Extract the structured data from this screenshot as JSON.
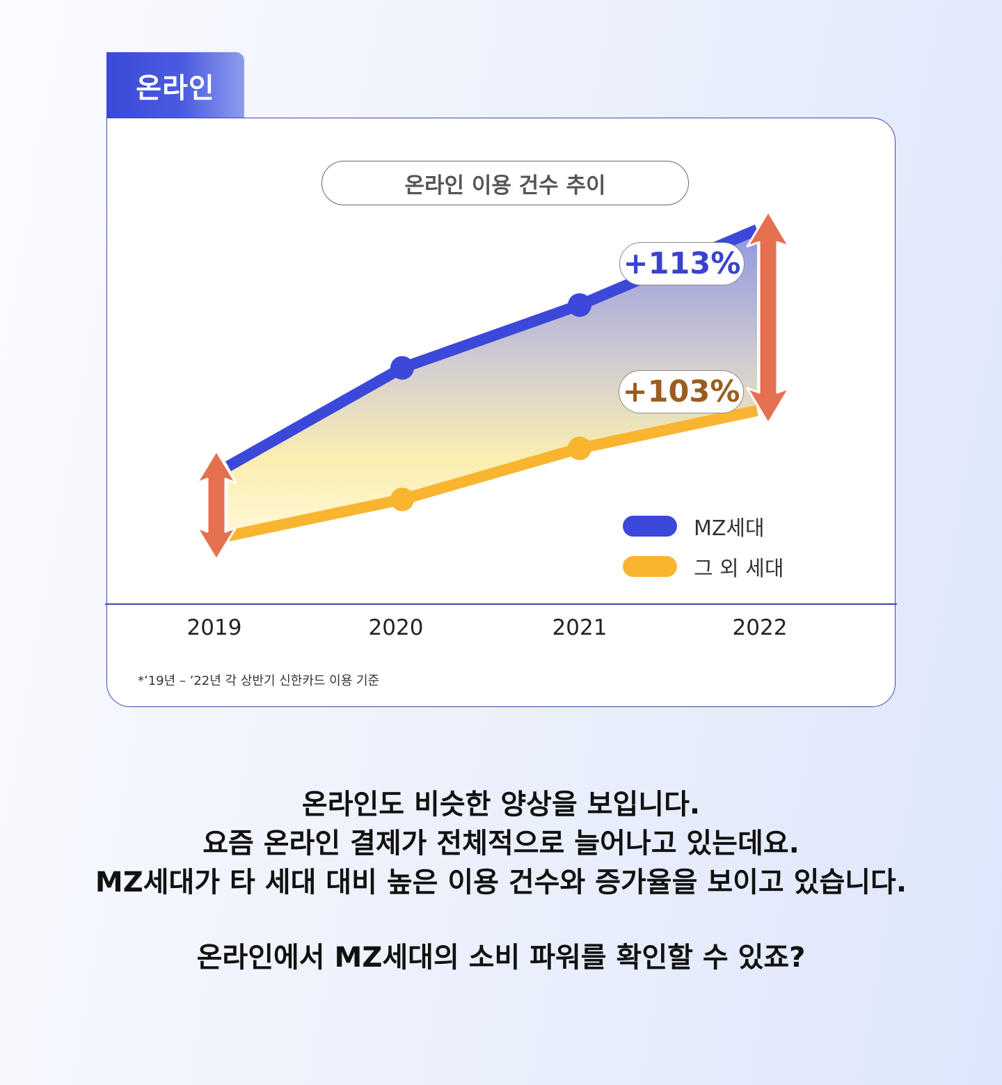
{
  "tab_label": "온라인",
  "chart_data": {
    "type": "line",
    "title": "온라인 이용 건수 추이",
    "categories": [
      "2019",
      "2020",
      "2021",
      "2022"
    ],
    "series": [
      {
        "name": "MZ세대",
        "values": [
          100,
          147,
          177,
          213
        ],
        "color": "#3c48d9"
      },
      {
        "name": "그 외 세대",
        "values": [
          100,
          130,
          172,
          203
        ],
        "color": "#f9b530"
      }
    ],
    "growth_labels": [
      {
        "series": "MZ세대",
        "text": "+113%",
        "color": "#3a42cf"
      },
      {
        "series": "그 외 세대",
        "text": "+103%",
        "color": "#9a5d1f"
      }
    ],
    "legend_position": "bottom-right",
    "xlabel": "",
    "ylabel": "",
    "grid": false,
    "arrow_color": "#e4704f",
    "footnote": "*’19년 – ’22년 각 상반기 신한카드 이용 기준"
  },
  "body": {
    "lines": [
      "온라인도 비슷한 양상을 보입니다.",
      "요즘 온라인 결제가 전체적으로 늘어나고 있는데요.",
      "MZ세대가 타 세대 대비 높은 이용 건수와 증가율을 보이고 있습니다."
    ],
    "closing": "온라인에서 MZ세대의 소비 파워를 확인할 수 있죠?"
  }
}
